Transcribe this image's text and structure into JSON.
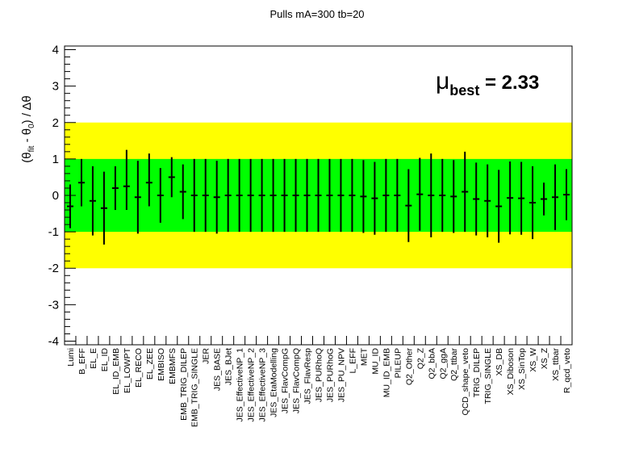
{
  "chart_data": {
    "type": "scatter",
    "title": "Pulls mA=300 tb=20",
    "ylabel_parts": {
      "open": "(θ",
      "sub1": "fit",
      "mid": " - θ",
      "sub2": "0",
      "close": ") / Δθ"
    },
    "ylim": [
      -4.1,
      4.1
    ],
    "yticks": [
      4,
      3,
      2,
      1,
      0,
      -1,
      -2,
      -3,
      -4
    ],
    "ytick_labels": [
      "4",
      "3",
      "2",
      "1",
      "0",
      "-1",
      "-2",
      "-3",
      "-4"
    ],
    "bands": [
      {
        "name": "2sigma",
        "low": -2,
        "high": 2,
        "color": "#ffff00"
      },
      {
        "name": "1sigma",
        "low": -1,
        "high": 1,
        "color": "#00ff00"
      }
    ],
    "annotation": {
      "symbol": "μ",
      "sub": "best",
      "text": " = 2.33"
    },
    "categories": [
      "Lumi",
      "B_EFF",
      "EL_E",
      "EL_ID",
      "EL_ID_EMB",
      "EL_LOWPT",
      "EL_RECO",
      "EL_ZEE",
      "EMBISO",
      "EMBMFS",
      "EMB_TRIG_DILEP",
      "EMB_TRIG_SINGLE",
      "JER",
      "JES_BASE",
      "JES_BJet",
      "JES_EffectiveNP_1",
      "JES_EffectiveNP_2",
      "JES_EffectiveNP_3",
      "JES_EtaModelling",
      "JES_FlavCompG",
      "JES_FlavCompQ",
      "JES_FlavResp",
      "JES_PURhoQ",
      "JES_PURhoG",
      "JES_PU_NPV",
      "L_EFF",
      "MET",
      "MU_ID",
      "MU_ID_EMB",
      "PILEUP",
      "Q2_Other",
      "Q2_Z",
      "Q2_bbA",
      "Q2_ggA",
      "Q2_ttbar",
      "QCD_shape_veto",
      "TRIG_DILEP",
      "TRIG_SINGLE",
      "XS_DB",
      "XS_Diboson",
      "XS_SinTop",
      "XS_W",
      "XS_Z",
      "XS_ttbar",
      "R_qcd_veto"
    ],
    "values": [
      -0.3,
      0.35,
      -0.15,
      -0.35,
      0.2,
      0.25,
      -0.05,
      0.35,
      0.0,
      0.5,
      0.1,
      0.0,
      0.0,
      -0.05,
      0.0,
      0.0,
      0.0,
      0.0,
      0.0,
      0.0,
      0.0,
      0.0,
      0.0,
      0.0,
      0.0,
      0.0,
      -0.03,
      -0.08,
      0.0,
      0.0,
      -0.28,
      0.03,
      0.0,
      0.0,
      -0.03,
      0.1,
      -0.1,
      -0.15,
      -0.3,
      -0.07,
      -0.08,
      -0.2,
      -0.1,
      -0.05,
      0.02
    ],
    "err_low": [
      0.6,
      0.65,
      0.95,
      1.0,
      0.6,
      0.65,
      1.0,
      0.65,
      0.75,
      0.55,
      0.75,
      1.0,
      1.0,
      1.0,
      1.0,
      1.0,
      1.0,
      1.0,
      1.0,
      1.0,
      1.0,
      1.0,
      1.0,
      1.0,
      1.0,
      1.0,
      1.0,
      1.0,
      1.0,
      1.0,
      1.0,
      1.0,
      1.15,
      1.0,
      1.0,
      1.1,
      1.0,
      1.0,
      1.0,
      1.0,
      1.0,
      1.0,
      0.45,
      0.9,
      0.7
    ],
    "err_high": [
      0.6,
      0.65,
      0.95,
      1.0,
      0.6,
      1.0,
      1.0,
      0.8,
      0.75,
      0.55,
      0.75,
      1.0,
      1.0,
      1.0,
      1.0,
      1.0,
      1.0,
      1.0,
      1.0,
      1.0,
      1.0,
      1.0,
      1.0,
      1.0,
      1.0,
      1.0,
      1.0,
      1.0,
      1.0,
      1.0,
      1.0,
      1.0,
      1.15,
      1.0,
      1.0,
      1.1,
      1.0,
      1.0,
      1.0,
      1.0,
      1.0,
      1.0,
      0.45,
      0.9,
      0.7
    ],
    "grid": false,
    "marker_color": "#000000"
  }
}
